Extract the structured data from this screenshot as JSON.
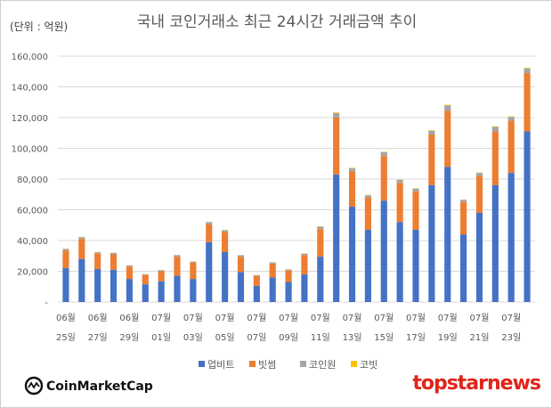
{
  "chart_data": {
    "type": "bar",
    "stacked": true,
    "title": "국내 코인거래소 최근 24시간 거래금액 추이",
    "unit_label": "(단위 : 억원)",
    "ylim": [
      0,
      160000
    ],
    "y_ticks": [
      "-",
      "20,000",
      "40,000",
      "60,000",
      "80,000",
      "100,000",
      "120,000",
      "140,000",
      "160,000"
    ],
    "x_tick_labels": [
      {
        "top": "06월",
        "bottom": "25일"
      },
      {
        "top": "06월",
        "bottom": "27일"
      },
      {
        "top": "06월",
        "bottom": "29일"
      },
      {
        "top": "07월",
        "bottom": "01일"
      },
      {
        "top": "07월",
        "bottom": "03일"
      },
      {
        "top": "07월",
        "bottom": "05일"
      },
      {
        "top": "07월",
        "bottom": "07일"
      },
      {
        "top": "07월",
        "bottom": "09일"
      },
      {
        "top": "07월",
        "bottom": "11일"
      },
      {
        "top": "07월",
        "bottom": "13일"
      },
      {
        "top": "07월",
        "bottom": "15일"
      },
      {
        "top": "07월",
        "bottom": "17일"
      },
      {
        "top": "07월",
        "bottom": "19일"
      },
      {
        "top": "07월",
        "bottom": "21일"
      },
      {
        "top": "07월",
        "bottom": "23일"
      }
    ],
    "grid": true,
    "legend_position": "bottom",
    "series": [
      {
        "name": "업비트",
        "color": "#4472c4",
        "values": [
          22000,
          28000,
          21500,
          21000,
          15000,
          11500,
          13500,
          17000,
          15000,
          39000,
          32500,
          19500,
          10500,
          16000,
          13000,
          18000,
          29500,
          83000,
          62000,
          47000,
          66000,
          52000,
          47000,
          76000,
          88000,
          44000,
          58000,
          76000,
          84000,
          111000
        ]
      },
      {
        "name": "빗썸",
        "color": "#ed7d31",
        "values": [
          11500,
          13000,
          10000,
          10000,
          8000,
          6000,
          6500,
          12500,
          10500,
          11500,
          13000,
          10000,
          6500,
          9000,
          7500,
          12500,
          18000,
          37000,
          23000,
          21000,
          29000,
          25500,
          25000,
          33000,
          36500,
          21000,
          24000,
          35000,
          34000,
          38000
        ]
      },
      {
        "name": "코인원",
        "color": "#a5a5a5",
        "values": [
          1000,
          1200,
          900,
          900,
          800,
          600,
          700,
          1000,
          800,
          1500,
          1200,
          900,
          500,
          800,
          700,
          1000,
          1500,
          3000,
          2000,
          1500,
          2500,
          2000,
          1800,
          2500,
          3500,
          1500,
          2000,
          3000,
          2500,
          3000
        ]
      },
      {
        "name": "코빗",
        "color": "#ffc000",
        "values": [
          150,
          150,
          120,
          120,
          100,
          80,
          80,
          120,
          100,
          200,
          150,
          120,
          60,
          100,
          80,
          120,
          200,
          400,
          300,
          200,
          300,
          250,
          250,
          300,
          400,
          200,
          250,
          350,
          300,
          400
        ]
      }
    ]
  },
  "branding": {
    "left_logo": "CoinMarketCap",
    "right_logo": "topstarnews"
  }
}
